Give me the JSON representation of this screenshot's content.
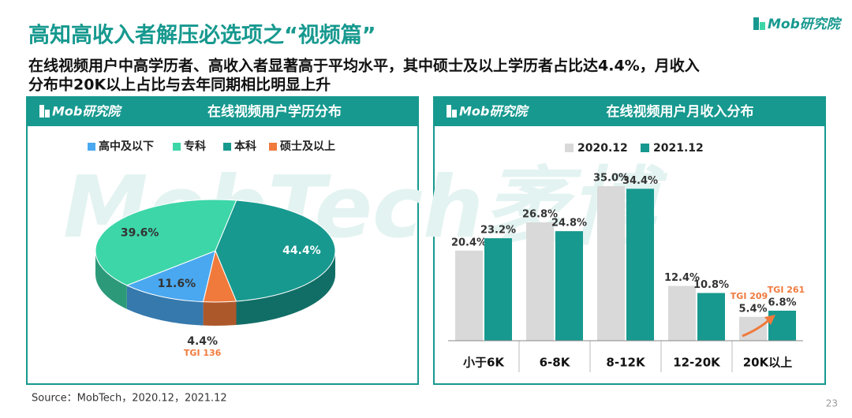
{
  "header": {
    "title": "高知高收入者解压必选项之“视频篇”",
    "logo": "Mob研究院",
    "subtitle_lines": [
      "在线视频用户中高学历者、高收入者显著高于平均水平，其中硕士及以上学历者占比达4.4%，月收入",
      "分布中20K以上占比与去年同期相比明显上升"
    ],
    "watermark": "MobTech袤博"
  },
  "chart_data": [
    {
      "type": "pie",
      "title": "在线视频用户学历分布",
      "categories": [
        "高中及以下",
        "专科",
        "本科",
        "硕士及以上"
      ],
      "values": [
        11.6,
        39.6,
        44.4,
        4.4
      ],
      "value_labels": [
        "11.6%",
        "39.6%",
        "44.4%",
        "4.4%"
      ],
      "colors": [
        "#4aa8f0",
        "#3dd6a8",
        "#17998f",
        "#f07a3c"
      ],
      "annotations": [
        "TGI 136"
      ],
      "legend": "top"
    },
    {
      "type": "bar",
      "title": "在线视频用户月收入分布",
      "categories": [
        "小于6K",
        "6-8K",
        "8-12K",
        "12-20K",
        "20K以上"
      ],
      "series": [
        {
          "name": "2020.12",
          "color": "#d9d9d9",
          "values": [
            20.4,
            26.8,
            35.0,
            12.4,
            5.4
          ],
          "value_labels": [
            "20.4%",
            "26.8%",
            "35.0%",
            "12.4%",
            "5.4%"
          ]
        },
        {
          "name": "2021.12",
          "color": "#17998f",
          "values": [
            23.2,
            24.8,
            34.4,
            10.8,
            6.8
          ],
          "value_labels": [
            "23.2%",
            "24.8%",
            "34.4%",
            "10.8%",
            "6.8%"
          ]
        }
      ],
      "ylim": [
        0,
        40
      ],
      "annotations": [
        "TGI 209",
        "TGI 261"
      ],
      "legend": "top"
    }
  ],
  "footer": {
    "source": "Source：MobTech，2020.12，2021.12",
    "page": "23"
  }
}
